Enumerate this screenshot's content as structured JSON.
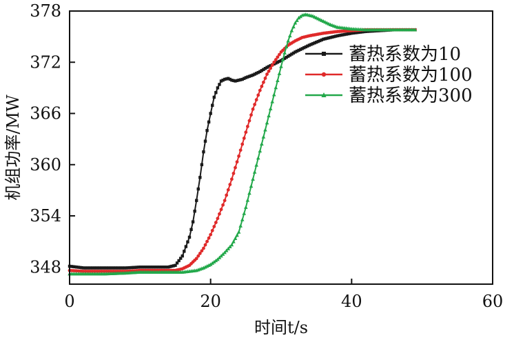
{
  "chart_data": {
    "type": "line",
    "title": "",
    "xlabel": "时间t/s",
    "ylabel": "机组功率/MW",
    "xlim": [
      0,
      60
    ],
    "ylim": [
      346,
      378
    ],
    "xticks": [
      0,
      20,
      40,
      60
    ],
    "yticks": [
      348,
      354,
      360,
      366,
      372,
      378
    ],
    "grid": false,
    "legend_position": "top-right",
    "series": [
      {
        "name": "蓄热系数为10",
        "color": "#1a1a1a",
        "marker": "square",
        "x": [
          0,
          2,
          5,
          8,
          10,
          12,
          14,
          15,
          16,
          17,
          17.5,
          18,
          18.5,
          19,
          19.5,
          20,
          20.5,
          21,
          21.5,
          22,
          22.5,
          23,
          23.5,
          24,
          24.5,
          25,
          26,
          27,
          28,
          29,
          30,
          31,
          32,
          34,
          36,
          38,
          40,
          42,
          44,
          46,
          49
        ],
        "y": [
          348.1,
          347.9,
          347.9,
          347.9,
          348.0,
          348.0,
          348.0,
          348.2,
          349.3,
          351.5,
          353.3,
          355.8,
          358.5,
          361.5,
          364.0,
          366.0,
          367.9,
          369.0,
          369.8,
          370.0,
          370.1,
          369.9,
          369.8,
          369.9,
          370.0,
          370.2,
          370.5,
          370.9,
          371.4,
          371.8,
          372.2,
          372.7,
          373.2,
          374.0,
          374.7,
          375.1,
          375.4,
          375.6,
          375.7,
          375.8,
          375.8
        ]
      },
      {
        "name": "蓄热系数为100",
        "color": "#e02a2a",
        "marker": "circle",
        "x": [
          0,
          2,
          5,
          8,
          10,
          12,
          14,
          15,
          16,
          17,
          18,
          19,
          20,
          21,
          22,
          23,
          24,
          25,
          26,
          27,
          28,
          29,
          30,
          31,
          32,
          33,
          34,
          36,
          38,
          40,
          42,
          44,
          46,
          49
        ],
        "y": [
          347.6,
          347.5,
          347.5,
          347.5,
          347.6,
          347.6,
          347.6,
          347.6,
          347.8,
          348.2,
          349.0,
          350.2,
          351.8,
          353.7,
          355.8,
          358.3,
          361.0,
          363.8,
          366.5,
          368.7,
          370.6,
          372.0,
          373.2,
          374.0,
          374.5,
          374.9,
          375.1,
          375.4,
          375.6,
          375.7,
          375.8,
          375.8,
          375.8,
          375.8
        ]
      },
      {
        "name": "蓄热系数为300",
        "color": "#22a84a",
        "marker": "triangle",
        "x": [
          0,
          2,
          5,
          8,
          10,
          12,
          14,
          16,
          17,
          18,
          19,
          20,
          21,
          22,
          23,
          24,
          25,
          26,
          27,
          28,
          29,
          30,
          30.5,
          31,
          31.5,
          32,
          32.5,
          33,
          33.5,
          34,
          34.5,
          35,
          36,
          37,
          38,
          40,
          42,
          44,
          46,
          49
        ],
        "y": [
          347.2,
          347.2,
          347.2,
          347.3,
          347.4,
          347.4,
          347.4,
          347.4,
          347.5,
          347.6,
          347.9,
          348.3,
          348.9,
          349.7,
          350.6,
          352.1,
          355.0,
          358.3,
          361.6,
          364.9,
          368.2,
          371.5,
          373.1,
          374.5,
          375.7,
          376.6,
          377.2,
          377.5,
          377.6,
          377.5,
          377.4,
          377.2,
          376.8,
          376.4,
          376.1,
          375.9,
          375.8,
          375.8,
          375.8,
          375.8
        ]
      }
    ]
  }
}
